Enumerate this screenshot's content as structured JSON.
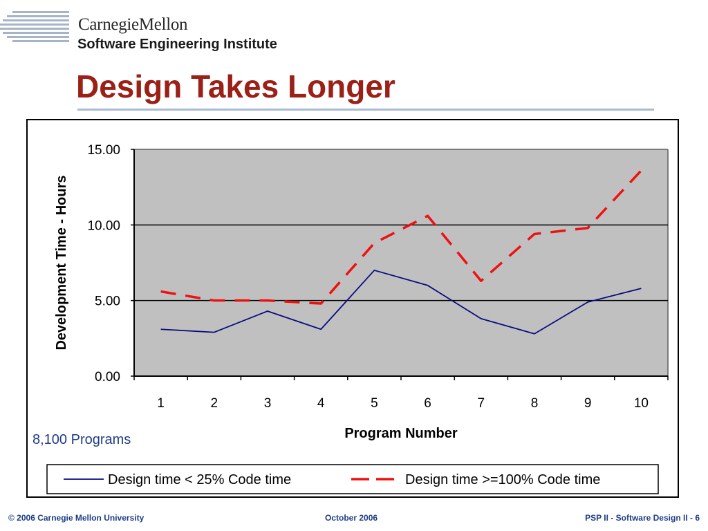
{
  "header": {
    "brand_line1": "CarnegieMellon",
    "brand_line2": "Software Engineering Institute",
    "title": "Design Takes Longer"
  },
  "note": "8,100 Programs",
  "footer": {
    "left": "© 2006 Carnegie Mellon University",
    "center": "October 2006",
    "right": "PSP II - Software Design II - 6"
  },
  "colors": {
    "title": "#9a2018",
    "plot_background": "#c0c0c0",
    "series1": "#0a0a80",
    "series2": "#ee1111"
  },
  "chart_data": {
    "type": "line",
    "xlabel": "Program Number",
    "ylabel": "Development Time - Hours",
    "categories": [
      "1",
      "2",
      "3",
      "4",
      "5",
      "6",
      "7",
      "8",
      "9",
      "10"
    ],
    "ylim": [
      0,
      15
    ],
    "yticks": [
      "0.00",
      "5.00",
      "10.00",
      "15.00"
    ],
    "grid": true,
    "legend": "bottom",
    "series": [
      {
        "name": "Design time < 25% Code time",
        "style": "solid",
        "values": [
          3.1,
          2.9,
          4.3,
          3.1,
          7.0,
          6.0,
          3.8,
          2.8,
          4.9,
          5.8
        ]
      },
      {
        "name": "Design time >=100% Code time",
        "style": "dashed",
        "values": [
          5.6,
          5.0,
          5.0,
          4.8,
          8.8,
          10.6,
          6.3,
          9.4,
          9.8,
          13.6
        ]
      }
    ]
  }
}
